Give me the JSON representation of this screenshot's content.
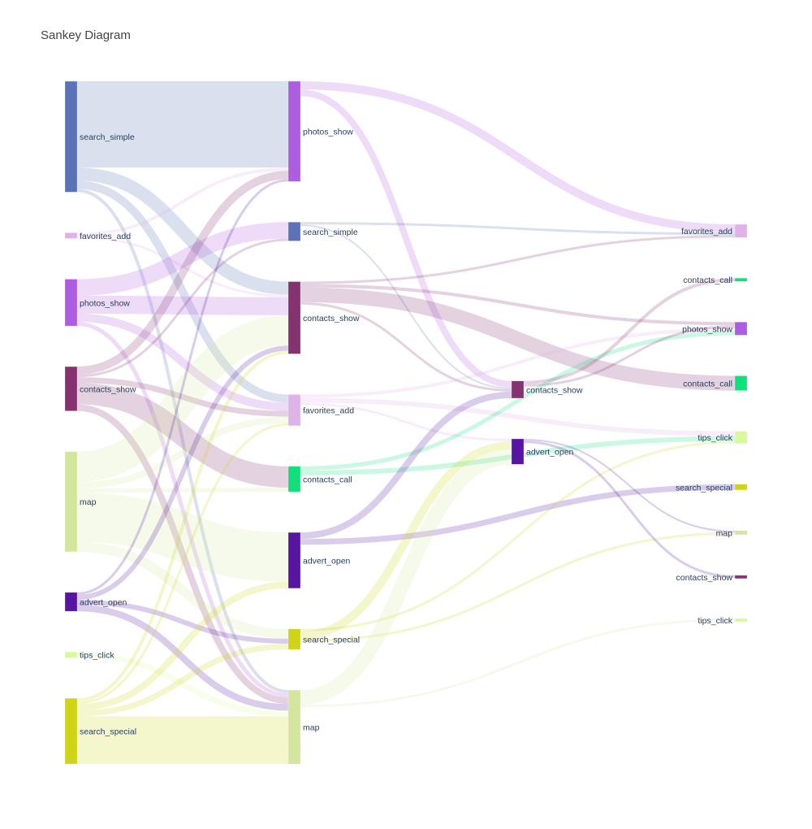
{
  "title": "Sankey Diagram",
  "colors": {
    "search_simple": "#5b73b6",
    "favorites_add": "#dfb2e8",
    "photos_show": "#ad5ddf",
    "contacts_show": "#853370",
    "map": "#d4e69e",
    "advert_open": "#5716a2",
    "tips_click": "#d9f99e",
    "search_special": "#cfd416",
    "contacts_call": "#0fe07a"
  },
  "chart_data": {
    "type": "sankey",
    "columns": [
      [
        "search_simple",
        "favorites_add",
        "photos_show",
        "contacts_show",
        "map",
        "advert_open",
        "tips_click",
        "search_special"
      ],
      [
        "photos_show",
        "search_simple",
        "contacts_show",
        "favorites_add",
        "contacts_call",
        "advert_open",
        "search_special",
        "map"
      ],
      [
        "contacts_show",
        "advert_open"
      ],
      [
        "favorites_add",
        "contacts_call",
        "photos_show",
        "contacts_call",
        "tips_click",
        "search_special",
        "map",
        "contacts_show",
        "tips_click"
      ]
    ],
    "nodes": [
      {
        "id": 0,
        "label": "search_simple",
        "key": "search_simple",
        "col": 0
      },
      {
        "id": 1,
        "label": "favorites_add",
        "key": "favorites_add",
        "col": 0
      },
      {
        "id": 2,
        "label": "photos_show",
        "key": "photos_show",
        "col": 0
      },
      {
        "id": 3,
        "label": "contacts_show",
        "key": "contacts_show",
        "col": 0
      },
      {
        "id": 4,
        "label": "map",
        "key": "map",
        "col": 0
      },
      {
        "id": 5,
        "label": "advert_open",
        "key": "advert_open",
        "col": 0
      },
      {
        "id": 6,
        "label": "tips_click",
        "key": "tips_click",
        "col": 0
      },
      {
        "id": 7,
        "label": "search_special",
        "key": "search_special",
        "col": 0
      },
      {
        "id": 8,
        "label": "photos_show",
        "key": "photos_show",
        "col": 1
      },
      {
        "id": 9,
        "label": "search_simple",
        "key": "search_simple",
        "col": 1
      },
      {
        "id": 10,
        "label": "contacts_show",
        "key": "contacts_show",
        "col": 1
      },
      {
        "id": 11,
        "label": "favorites_add",
        "key": "favorites_add",
        "col": 1
      },
      {
        "id": 12,
        "label": "contacts_call",
        "key": "contacts_call",
        "col": 1
      },
      {
        "id": 13,
        "label": "advert_open",
        "key": "advert_open",
        "col": 1
      },
      {
        "id": 14,
        "label": "search_special",
        "key": "search_special",
        "col": 1
      },
      {
        "id": 15,
        "label": "map",
        "key": "map",
        "col": 1
      },
      {
        "id": 16,
        "label": "contacts_show",
        "key": "contacts_show",
        "col": 2
      },
      {
        "id": 17,
        "label": "advert_open",
        "key": "advert_open",
        "col": 2
      },
      {
        "id": 18,
        "label": "favorites_add",
        "key": "favorites_add",
        "col": 3
      },
      {
        "id": 19,
        "label": "contacts_call",
        "key": "contacts_call",
        "col": 3
      },
      {
        "id": 20,
        "label": "photos_show",
        "key": "photos_show",
        "col": 3
      },
      {
        "id": 21,
        "label": "contacts_call",
        "key": "contacts_call",
        "col": 3
      },
      {
        "id": 22,
        "label": "tips_click",
        "key": "tips_click",
        "col": 3
      },
      {
        "id": 23,
        "label": "search_special",
        "key": "search_special",
        "col": 3
      },
      {
        "id": 24,
        "label": "map",
        "key": "map",
        "col": 3
      },
      {
        "id": 25,
        "label": "contacts_show",
        "key": "contacts_show",
        "col": 3
      },
      {
        "id": 26,
        "label": "tips_click",
        "key": "tips_click",
        "col": 3
      }
    ],
    "links": [
      {
        "source": 0,
        "target": 8,
        "value": 105
      },
      {
        "source": 0,
        "target": 10,
        "value": 16
      },
      {
        "source": 0,
        "target": 11,
        "value": 10
      },
      {
        "source": 0,
        "target": 15,
        "value": 4
      },
      {
        "source": 1,
        "target": 8,
        "value": 4
      },
      {
        "source": 1,
        "target": 10,
        "value": 3
      },
      {
        "source": 2,
        "target": 9,
        "value": 20
      },
      {
        "source": 2,
        "target": 10,
        "value": 22
      },
      {
        "source": 2,
        "target": 11,
        "value": 10
      },
      {
        "source": 2,
        "target": 15,
        "value": 5
      },
      {
        "source": 3,
        "target": 8,
        "value": 10
      },
      {
        "source": 3,
        "target": 9,
        "value": 3
      },
      {
        "source": 3,
        "target": 11,
        "value": 7
      },
      {
        "source": 3,
        "target": 12,
        "value": 26
      },
      {
        "source": 3,
        "target": 15,
        "value": 8
      },
      {
        "source": 4,
        "target": 10,
        "value": 37
      },
      {
        "source": 4,
        "target": 11,
        "value": 8
      },
      {
        "source": 4,
        "target": 12,
        "value": 5
      },
      {
        "source": 4,
        "target": 13,
        "value": 60
      },
      {
        "source": 4,
        "target": 14,
        "value": 12
      },
      {
        "source": 5,
        "target": 8,
        "value": 3
      },
      {
        "source": 5,
        "target": 10,
        "value": 6
      },
      {
        "source": 5,
        "target": 14,
        "value": 6
      },
      {
        "source": 5,
        "target": 15,
        "value": 8
      },
      {
        "source": 6,
        "target": 15,
        "value": 7
      },
      {
        "source": 7,
        "target": 10,
        "value": 4
      },
      {
        "source": 7,
        "target": 11,
        "value": 3
      },
      {
        "source": 7,
        "target": 13,
        "value": 8
      },
      {
        "source": 7,
        "target": 14,
        "value": 7
      },
      {
        "source": 7,
        "target": 15,
        "value": 58
      },
      {
        "source": 8,
        "target": 18,
        "value": 10
      },
      {
        "source": 8,
        "target": 16,
        "value": 8
      },
      {
        "source": 9,
        "target": 18,
        "value": 3
      },
      {
        "source": 9,
        "target": 16,
        "value": 2
      },
      {
        "source": 10,
        "target": 18,
        "value": 3
      },
      {
        "source": 10,
        "target": 20,
        "value": 4
      },
      {
        "source": 10,
        "target": 21,
        "value": 18
      },
      {
        "source": 10,
        "target": 16,
        "value": 3
      },
      {
        "source": 11,
        "target": 20,
        "value": 4
      },
      {
        "source": 11,
        "target": 22,
        "value": 6
      },
      {
        "source": 11,
        "target": 17,
        "value": 3
      },
      {
        "source": 12,
        "target": 20,
        "value": 5
      },
      {
        "source": 12,
        "target": 22,
        "value": 6
      },
      {
        "source": 13,
        "target": 23,
        "value": 7
      },
      {
        "source": 13,
        "target": 16,
        "value": 8
      },
      {
        "source": 14,
        "target": 22,
        "value": 3
      },
      {
        "source": 14,
        "target": 17,
        "value": 10
      },
      {
        "source": 14,
        "target": 24,
        "value": 3
      },
      {
        "source": 15,
        "target": 17,
        "value": 18
      },
      {
        "source": 15,
        "target": 26,
        "value": 3
      },
      {
        "source": 16,
        "target": 19,
        "value": 4
      },
      {
        "source": 16,
        "target": 20,
        "value": 3
      },
      {
        "source": 17,
        "target": 25,
        "value": 3
      },
      {
        "source": 17,
        "target": 24,
        "value": 2
      }
    ]
  }
}
